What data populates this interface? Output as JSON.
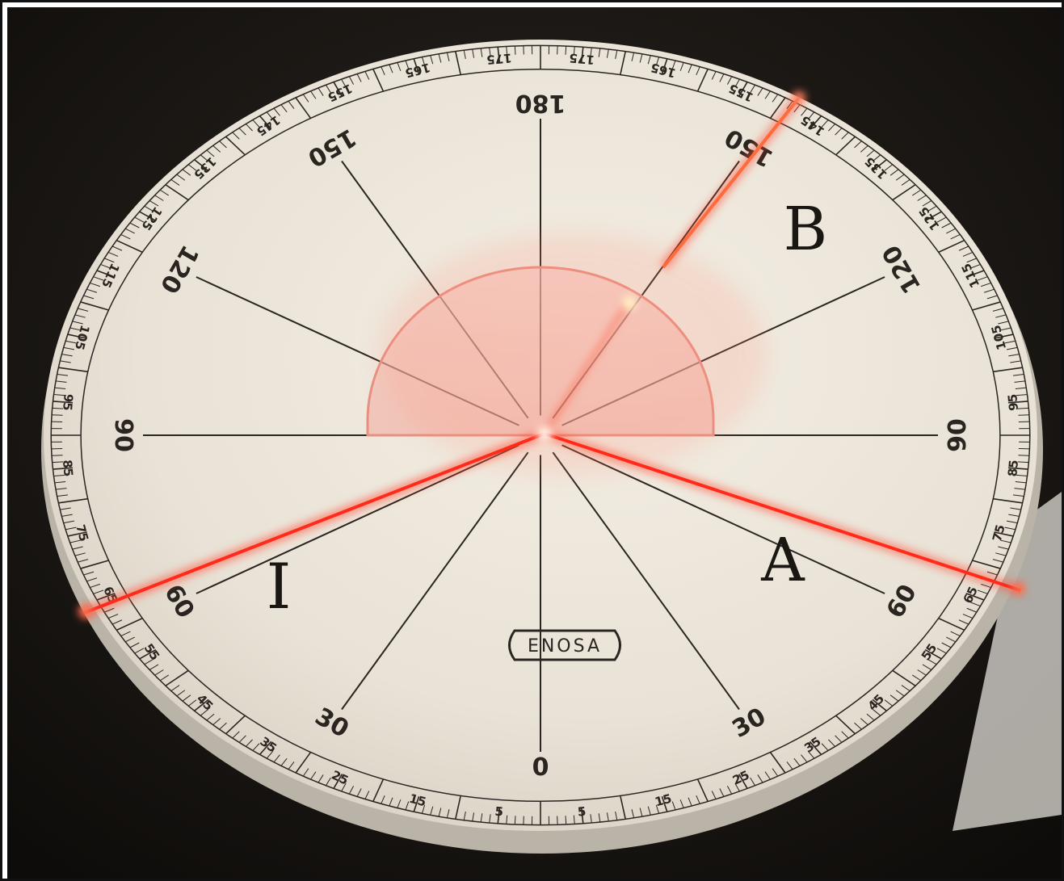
{
  "colors": {
    "background": "#141210",
    "disc_face": "#ece6db",
    "disc_edge": "#b9b3a8",
    "ink": "#2a2520",
    "laser": "#ff2a1a",
    "laser_glow": "#ff6a4a",
    "frame": "#111111"
  },
  "scale": {
    "major_labels_bottom": [
      "0",
      "30",
      "60",
      "90"
    ],
    "major_labels_top": [
      "90",
      "120",
      "150",
      "180"
    ],
    "minor_labels": [
      "5",
      "15",
      "25",
      "35",
      "45",
      "55",
      "65",
      "75",
      "85",
      "95",
      "105",
      "115",
      "125",
      "135",
      "145",
      "155",
      "165",
      "175"
    ]
  },
  "brand": {
    "logo_text": "ENOSA"
  },
  "beams": {
    "incident_label": "I",
    "reflected_label": "A",
    "refracted_label": "B"
  }
}
